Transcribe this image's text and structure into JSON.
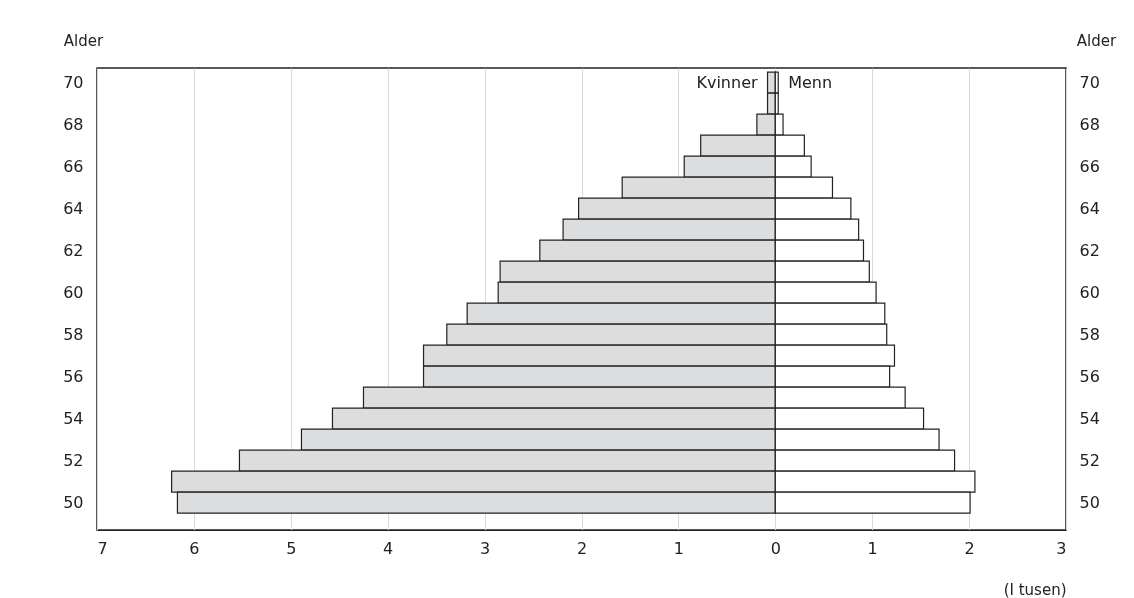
{
  "chart_data": {
    "type": "bar",
    "orientation": "horizontal",
    "stacked": true,
    "categories": [
      "70",
      null,
      "68",
      null,
      "66",
      null,
      "64",
      null,
      "62",
      null,
      "60",
      null,
      "58",
      null,
      "56",
      null,
      "54",
      null,
      "52",
      null,
      "50"
    ],
    "ylabel": "Alder",
    "y2label": "Alder",
    "xlabel": "(I tusen)",
    "xlim": [
      -7,
      3
    ],
    "xticks": [
      {
        "value": -7,
        "label": "7"
      },
      {
        "value": -6,
        "label": "6"
      },
      {
        "value": -5,
        "label": "5"
      },
      {
        "value": -4,
        "label": "4"
      },
      {
        "value": -3,
        "label": "3"
      },
      {
        "value": -2,
        "label": "2"
      },
      {
        "value": -1,
        "label": "1"
      },
      0,
      1,
      2,
      3
    ],
    "grid": "x",
    "series": [
      {
        "name": "Kvinner",
        "color": "#dcdddf",
        "values": [
          -0.08,
          -0.08,
          -0.19,
          -0.77,
          -0.94,
          -1.58,
          -2.03,
          -2.19,
          -2.43,
          -2.84,
          -2.86,
          -3.18,
          -3.39,
          -3.63,
          -3.63,
          -4.25,
          -4.57,
          -4.89,
          -5.53,
          -6.23,
          -6.17
        ]
      },
      {
        "name": "Menn",
        "color": "#ffffff",
        "values": [
          0.03,
          0.03,
          0.08,
          0.3,
          0.37,
          0.59,
          0.78,
          0.86,
          0.91,
          0.97,
          1.04,
          1.13,
          1.15,
          1.23,
          1.18,
          1.34,
          1.53,
          1.69,
          1.85,
          2.06,
          2.01
        ]
      }
    ]
  }
}
